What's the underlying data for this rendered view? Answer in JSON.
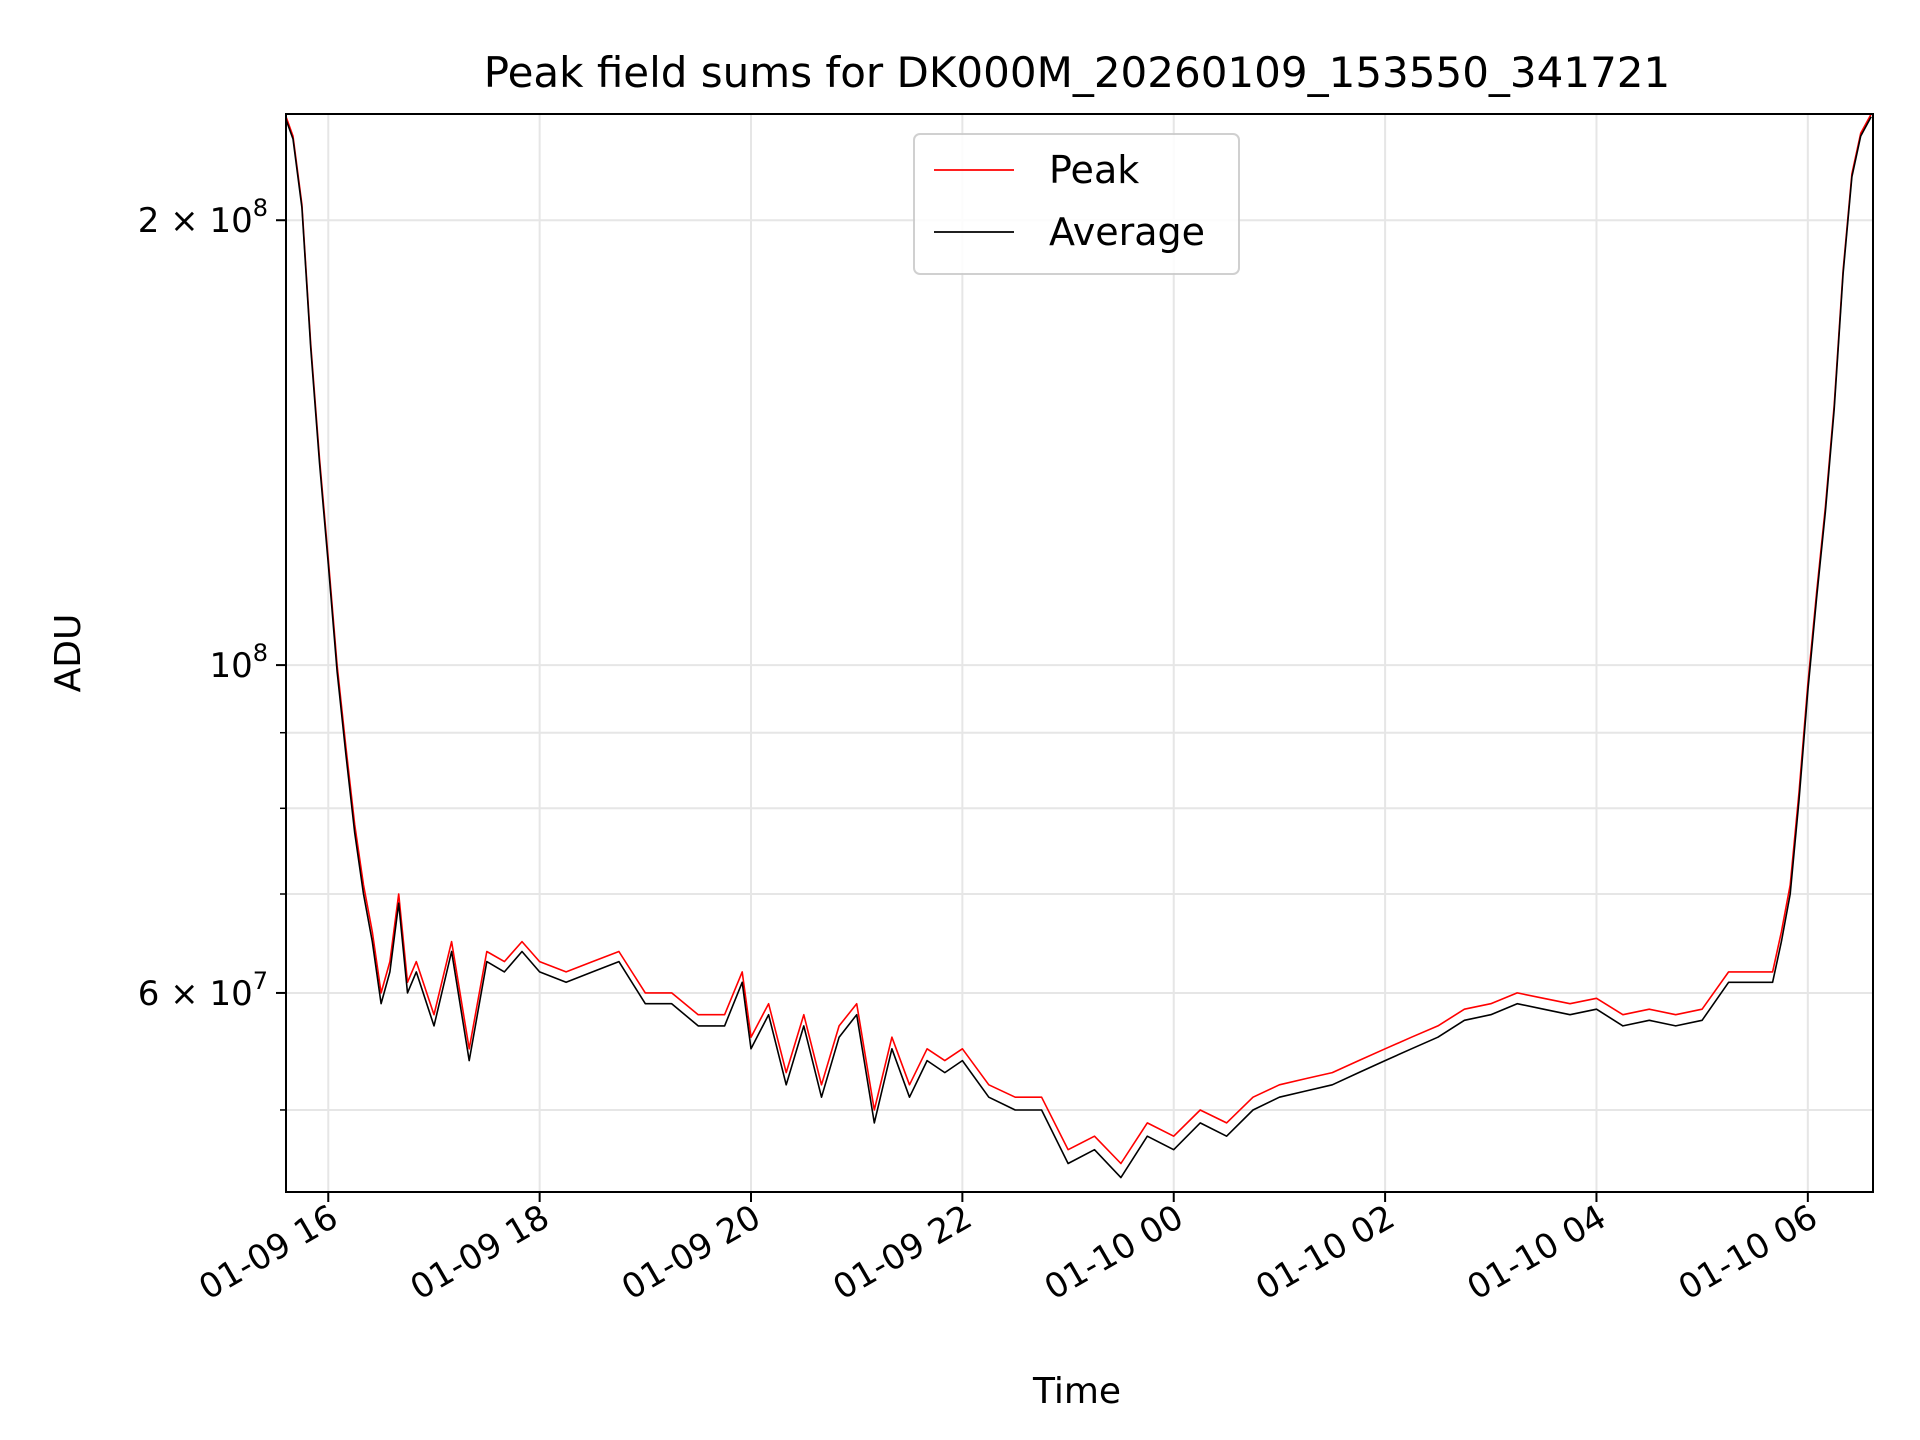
{
  "chart_data": {
    "type": "line",
    "title": "Peak field sums for DK000M_20260109_153550_341721",
    "xlabel": "Time",
    "ylabel": "ADU",
    "y_scale": "log",
    "ylim": [
      44000000,
      236000000
    ],
    "xlim": [
      "2026-01-09T15:36",
      "2026-01-10T06:37"
    ],
    "grid": true,
    "legend_position": "upper center",
    "x_ticks": [
      {
        "t": "2026-01-09T16:00",
        "label": "01-09 16"
      },
      {
        "t": "2026-01-09T18:00",
        "label": "01-09 18"
      },
      {
        "t": "2026-01-09T20:00",
        "label": "01-09 20"
      },
      {
        "t": "2026-01-09T22:00",
        "label": "01-09 22"
      },
      {
        "t": "2026-01-10T00:00",
        "label": "01-10 00"
      },
      {
        "t": "2026-01-10T02:00",
        "label": "01-10 02"
      },
      {
        "t": "2026-01-10T04:00",
        "label": "01-10 04"
      },
      {
        "t": "2026-01-10T06:00",
        "label": "01-10 06"
      }
    ],
    "y_major_ticks": [
      {
        "value": 60000000,
        "mantissa": "6",
        "base": "10",
        "exp": "7"
      },
      {
        "value": 100000000,
        "mantissa": "",
        "base": "10",
        "exp": "8"
      },
      {
        "value": 200000000,
        "mantissa": "2",
        "base": "10",
        "exp": "8"
      }
    ],
    "y_minor_ticks": [
      50000000,
      70000000,
      80000000,
      90000000
    ],
    "series": [
      {
        "name": "Peak",
        "color": "#ff0000"
      },
      {
        "name": "Average",
        "color": "#000000"
      }
    ],
    "x": [
      "2026-01-09T15:36",
      "2026-01-09T15:40",
      "2026-01-09T15:45",
      "2026-01-09T15:50",
      "2026-01-09T15:55",
      "2026-01-09T16:00",
      "2026-01-09T16:05",
      "2026-01-09T16:10",
      "2026-01-09T16:15",
      "2026-01-09T16:20",
      "2026-01-09T16:25",
      "2026-01-09T16:30",
      "2026-01-09T16:35",
      "2026-01-09T16:40",
      "2026-01-09T16:45",
      "2026-01-09T16:50",
      "2026-01-09T17:00",
      "2026-01-09T17:10",
      "2026-01-09T17:20",
      "2026-01-09T17:30",
      "2026-01-09T17:40",
      "2026-01-09T17:50",
      "2026-01-09T18:00",
      "2026-01-09T18:15",
      "2026-01-09T18:30",
      "2026-01-09T18:45",
      "2026-01-09T19:00",
      "2026-01-09T19:15",
      "2026-01-09T19:30",
      "2026-01-09T19:45",
      "2026-01-09T19:55",
      "2026-01-09T20:00",
      "2026-01-09T20:10",
      "2026-01-09T20:20",
      "2026-01-09T20:30",
      "2026-01-09T20:40",
      "2026-01-09T20:50",
      "2026-01-09T21:00",
      "2026-01-09T21:10",
      "2026-01-09T21:20",
      "2026-01-09T21:30",
      "2026-01-09T21:40",
      "2026-01-09T21:50",
      "2026-01-09T22:00",
      "2026-01-09T22:15",
      "2026-01-09T22:30",
      "2026-01-09T22:45",
      "2026-01-09T23:00",
      "2026-01-09T23:15",
      "2026-01-09T23:30",
      "2026-01-09T23:45",
      "2026-01-10T00:00",
      "2026-01-10T00:15",
      "2026-01-10T00:30",
      "2026-01-10T00:45",
      "2026-01-10T01:00",
      "2026-01-10T01:15",
      "2026-01-10T01:30",
      "2026-01-10T01:45",
      "2026-01-10T02:00",
      "2026-01-10T02:15",
      "2026-01-10T02:30",
      "2026-01-10T02:45",
      "2026-01-10T03:00",
      "2026-01-10T03:15",
      "2026-01-10T03:30",
      "2026-01-10T03:45",
      "2026-01-10T04:00",
      "2026-01-10T04:15",
      "2026-01-10T04:30",
      "2026-01-10T04:45",
      "2026-01-10T05:00",
      "2026-01-10T05:15",
      "2026-01-10T05:30",
      "2026-01-10T05:40",
      "2026-01-10T05:45",
      "2026-01-10T05:50",
      "2026-01-10T05:55",
      "2026-01-10T06:00",
      "2026-01-10T06:05",
      "2026-01-10T06:10",
      "2026-01-10T06:15",
      "2026-01-10T06:20",
      "2026-01-10T06:25",
      "2026-01-10T06:30",
      "2026-01-10T06:36"
    ],
    "peak": [
      235000000,
      228000000,
      205000000,
      165000000,
      138000000,
      118000000,
      100000000,
      88000000,
      78000000,
      71000000,
      66000000,
      60000000,
      63000000,
      70000000,
      61000000,
      63000000,
      58000000,
      65000000,
      55000000,
      64000000,
      63000000,
      65000000,
      63000000,
      62000000,
      63000000,
      64000000,
      60000000,
      60000000,
      58000000,
      58000000,
      62000000,
      56000000,
      59000000,
      53000000,
      58000000,
      52000000,
      57000000,
      59000000,
      50000000,
      56000000,
      52000000,
      55000000,
      54000000,
      55000000,
      52000000,
      51000000,
      51000000,
      47000000,
      48000000,
      46000000,
      49000000,
      48000000,
      50000000,
      49000000,
      51000000,
      52000000,
      52500000,
      53000000,
      54000000,
      55000000,
      56000000,
      57000000,
      58500000,
      59000000,
      60000000,
      59500000,
      59000000,
      59500000,
      58000000,
      58500000,
      58000000,
      58500000,
      62000000,
      62000000,
      62000000,
      66000000,
      71000000,
      82000000,
      97000000,
      112000000,
      128000000,
      150000000,
      185000000,
      215000000,
      229000000,
      236000000
    ],
    "average": [
      234000000,
      227000000,
      204000000,
      164000000,
      137000000,
      117000000,
      99000000,
      87000000,
      77000000,
      70000000,
      65000000,
      59000000,
      62000000,
      69000000,
      60000000,
      62000000,
      57000000,
      64000000,
      54000000,
      63000000,
      62000000,
      64000000,
      62000000,
      61000000,
      62000000,
      63000000,
      59000000,
      59000000,
      57000000,
      57000000,
      61000000,
      55000000,
      58000000,
      52000000,
      57000000,
      51000000,
      56000000,
      58000000,
      49000000,
      55000000,
      51000000,
      54000000,
      53000000,
      54000000,
      51000000,
      50000000,
      50000000,
      46000000,
      47000000,
      45000000,
      48000000,
      47000000,
      49000000,
      48000000,
      50000000,
      51000000,
      51500000,
      52000000,
      53000000,
      54000000,
      55000000,
      56000000,
      57500000,
      58000000,
      59000000,
      58500000,
      58000000,
      58500000,
      57000000,
      57500000,
      57000000,
      57500000,
      61000000,
      61000000,
      61000000,
      65000000,
      70000000,
      81000000,
      96000000,
      111000000,
      127000000,
      149000000,
      184000000,
      214000000,
      228000000,
      235000000
    ]
  }
}
